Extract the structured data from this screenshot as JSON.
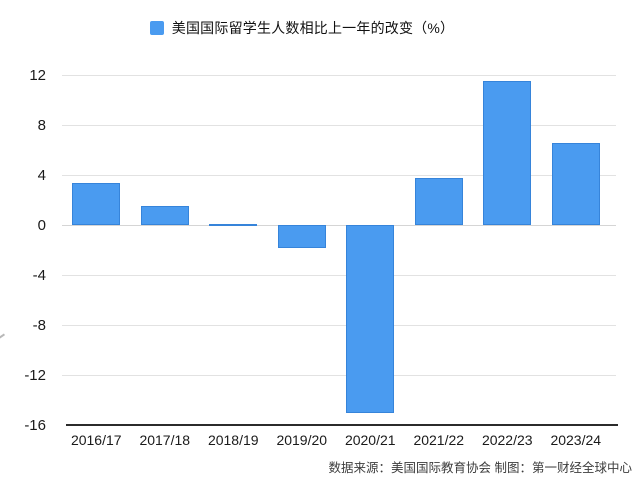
{
  "legend": {
    "label": "美国国际留学生人数相比上一年的改变（%）"
  },
  "footer": {
    "source_note": "数据来源：美国国际教育协会 制图：第一财经全球中心"
  },
  "colors": {
    "bar": "#4A9BF0",
    "bar_edge": "rgba(32,104,190,0.45)",
    "grid": "#e2e2e2",
    "zero_line": "#d5d5d5",
    "axis": "#2b2b2b",
    "tick_text": "#1a1a1a"
  },
  "chart_data": {
    "type": "bar",
    "title": "美国国际留学生人数相比上一年的改变（%）",
    "categories": [
      "2016/17",
      "2017/18",
      "2018/19",
      "2019/20",
      "2020/21",
      "2021/22",
      "2022/23",
      "2023/24"
    ],
    "values": [
      3.4,
      1.5,
      0.05,
      -1.8,
      -15,
      3.8,
      11.5,
      6.6
    ],
    "xlabel": "",
    "ylabel": "",
    "ylim": [
      -16,
      12
    ],
    "yticks": [
      12,
      8,
      4,
      0,
      -4,
      -8,
      -12,
      -16
    ],
    "grid": true,
    "legend_position": "top",
    "source": "数据来源：美国国际教育协会 制图：第一财经全球中心"
  }
}
